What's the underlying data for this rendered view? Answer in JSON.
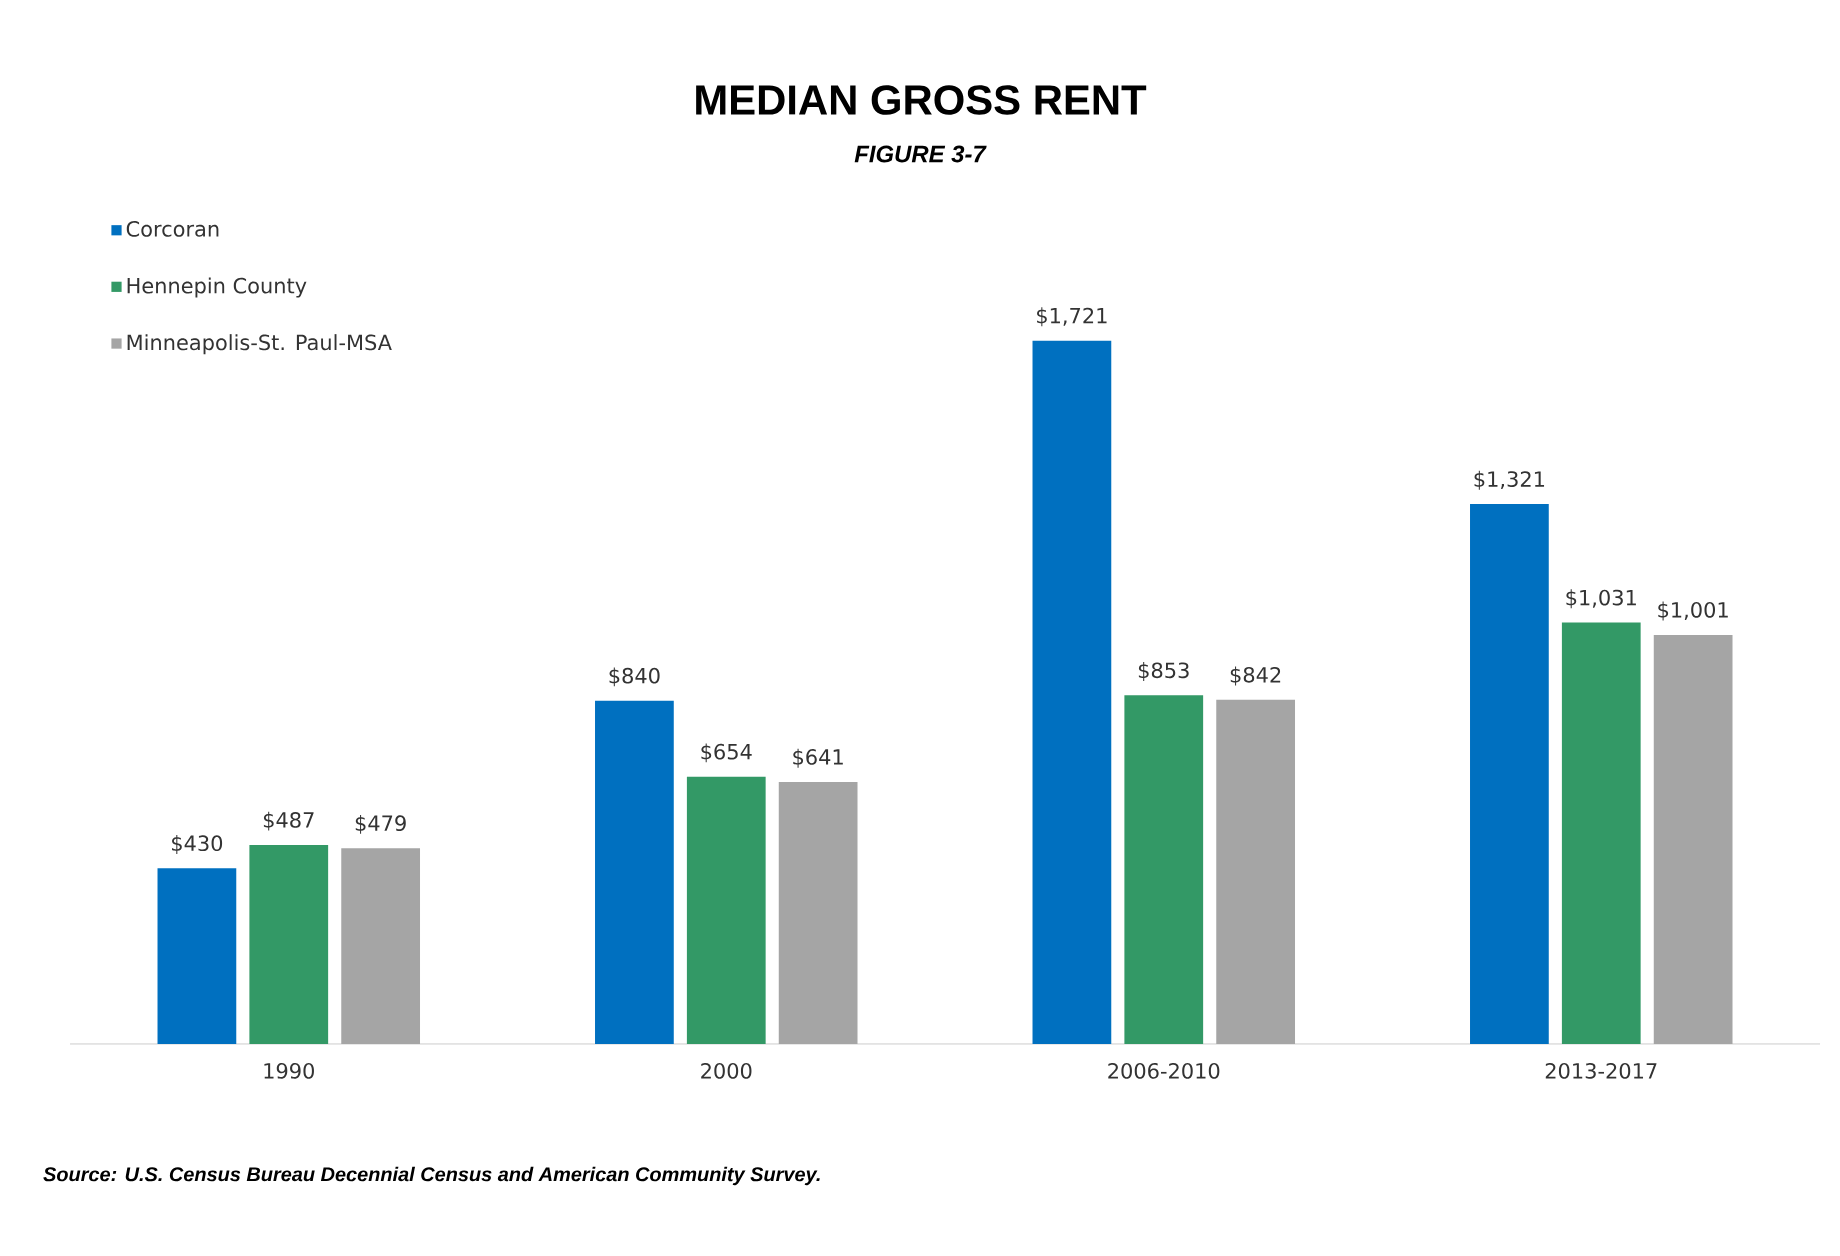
{
  "chart_data": {
    "type": "bar",
    "title": "MEDIAN GROSS RENT",
    "subtitle": "FIGURE 3-7",
    "categories": [
      "1990",
      "2000",
      "2006-2010",
      "2013-2017"
    ],
    "series": [
      {
        "name": "Corcoran",
        "color": "#0070c0",
        "values": [
          430,
          840,
          1721,
          1321
        ],
        "value_labels": [
          "$430",
          "$840",
          "$1,721",
          "$1,321"
        ]
      },
      {
        "name": "Hennepin County",
        "color": "#339966",
        "values": [
          487,
          654,
          853,
          1031
        ],
        "value_labels": [
          "$487",
          "$654",
          "$853",
          "$1,031"
        ]
      },
      {
        "name": "Minneapolis-St. Paul-MSA",
        "color": "#a5a5a5",
        "values": [
          479,
          641,
          842,
          1001
        ],
        "value_labels": [
          "$479",
          "$641",
          "$842",
          "$1,001"
        ]
      }
    ],
    "legend": "top left",
    "annotations": [
      "Source: U.S. Census Bureau Decennial Census and American Community Survey."
    ]
  }
}
